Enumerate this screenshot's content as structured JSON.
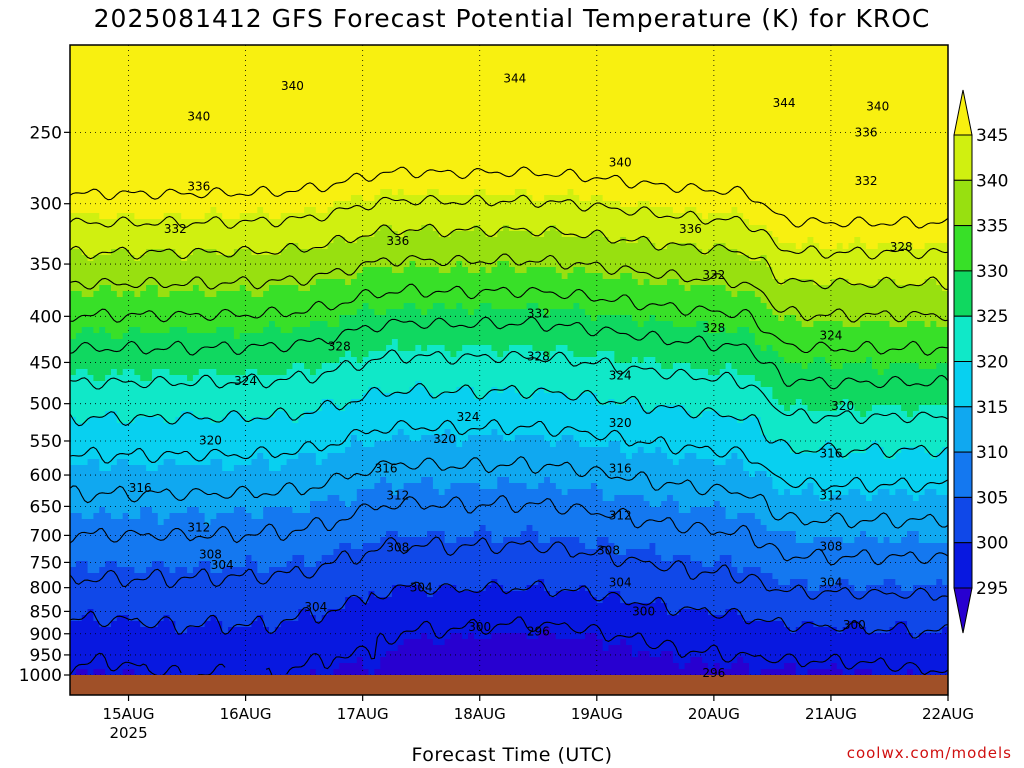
{
  "chart_data": {
    "type": "heatmap",
    "title": "2025081412 GFS Forecast Potential Temperature (K) for KROC",
    "xlabel": "Forecast Time (UTC)",
    "ylabel": "",
    "x_range": [
      "2025-08-14T12",
      "2025-08-22T00"
    ],
    "x_ticks": [
      {
        "day": 15,
        "label": "15AUG",
        "sub": "2025"
      },
      {
        "day": 16,
        "label": "16AUG",
        "sub": ""
      },
      {
        "day": 17,
        "label": "17AUG",
        "sub": ""
      },
      {
        "day": 18,
        "label": "18AUG",
        "sub": ""
      },
      {
        "day": 19,
        "label": "19AUG",
        "sub": ""
      },
      {
        "day": 20,
        "label": "20AUG",
        "sub": ""
      },
      {
        "day": 21,
        "label": "21AUG",
        "sub": ""
      },
      {
        "day": 22,
        "label": "22AUG",
        "sub": ""
      }
    ],
    "y_axis": {
      "scale": "log-pressure",
      "units": "hPa",
      "inverted": true,
      "range": [
        1000,
        200
      ]
    },
    "y_ticks": [
      250,
      300,
      350,
      400,
      450,
      500,
      550,
      600,
      650,
      700,
      750,
      800,
      850,
      900,
      950,
      1000
    ],
    "colorbar": {
      "levels": [
        295,
        300,
        305,
        310,
        315,
        320,
        325,
        330,
        335,
        340,
        345
      ],
      "labels": [
        "345",
        "340",
        "335",
        "330",
        "325",
        "320",
        "315",
        "310",
        "305",
        "300",
        "295"
      ],
      "colors": [
        "#2800d0",
        "#0818e0",
        "#1048e8",
        "#1478f0",
        "#10a8f0",
        "#08d0f0",
        "#10e8c8",
        "#10d860",
        "#38e028",
        "#98e010",
        "#d0f010",
        "#f8f010"
      ]
    },
    "grid": true,
    "ground_color": "#a05028",
    "contour_interval": 4,
    "contour_labels": [
      {
        "day": 16.4,
        "p": 222,
        "value": "340"
      },
      {
        "day": 18.3,
        "p": 218,
        "value": "344"
      },
      {
        "day": 20.6,
        "p": 232,
        "value": "344"
      },
      {
        "day": 21.4,
        "p": 234,
        "value": "340"
      },
      {
        "day": 15.6,
        "p": 240,
        "value": "340"
      },
      {
        "day": 21.3,
        "p": 250,
        "value": "336"
      },
      {
        "day": 19.2,
        "p": 270,
        "value": "340"
      },
      {
        "day": 21.3,
        "p": 283,
        "value": "332"
      },
      {
        "day": 15.6,
        "p": 287,
        "value": "336"
      },
      {
        "day": 15.4,
        "p": 320,
        "value": "332"
      },
      {
        "day": 19.8,
        "p": 320,
        "value": "336"
      },
      {
        "day": 17.3,
        "p": 330,
        "value": "336"
      },
      {
        "day": 21.6,
        "p": 335,
        "value": "328"
      },
      {
        "day": 20.0,
        "p": 360,
        "value": "332"
      },
      {
        "day": 18.5,
        "p": 397,
        "value": "332"
      },
      {
        "day": 20.0,
        "p": 412,
        "value": "328"
      },
      {
        "day": 21.0,
        "p": 420,
        "value": "324"
      },
      {
        "day": 16.8,
        "p": 432,
        "value": "328"
      },
      {
        "day": 18.5,
        "p": 443,
        "value": "328"
      },
      {
        "day": 16.0,
        "p": 472,
        "value": "324"
      },
      {
        "day": 19.2,
        "p": 465,
        "value": "324"
      },
      {
        "day": 21.1,
        "p": 503,
        "value": "320"
      },
      {
        "day": 17.9,
        "p": 517,
        "value": "324"
      },
      {
        "day": 19.2,
        "p": 525,
        "value": "320"
      },
      {
        "day": 15.7,
        "p": 549,
        "value": "320"
      },
      {
        "day": 17.7,
        "p": 547,
        "value": "320"
      },
      {
        "day": 21.0,
        "p": 568,
        "value": "316"
      },
      {
        "day": 17.2,
        "p": 590,
        "value": "316"
      },
      {
        "day": 19.2,
        "p": 590,
        "value": "316"
      },
      {
        "day": 15.1,
        "p": 620,
        "value": "316"
      },
      {
        "day": 17.3,
        "p": 632,
        "value": "312"
      },
      {
        "day": 21.0,
        "p": 632,
        "value": "312"
      },
      {
        "day": 19.2,
        "p": 665,
        "value": "312"
      },
      {
        "day": 15.6,
        "p": 686,
        "value": "312"
      },
      {
        "day": 17.3,
        "p": 722,
        "value": "308"
      },
      {
        "day": 19.1,
        "p": 728,
        "value": "308"
      },
      {
        "day": 21.0,
        "p": 720,
        "value": "308"
      },
      {
        "day": 15.7,
        "p": 735,
        "value": "308"
      },
      {
        "day": 15.8,
        "p": 755,
        "value": "304"
      },
      {
        "day": 19.2,
        "p": 790,
        "value": "304"
      },
      {
        "day": 21.0,
        "p": 790,
        "value": "304"
      },
      {
        "day": 17.5,
        "p": 800,
        "value": "304"
      },
      {
        "day": 16.6,
        "p": 840,
        "value": "304"
      },
      {
        "day": 19.4,
        "p": 850,
        "value": "300"
      },
      {
        "day": 18.0,
        "p": 885,
        "value": "300"
      },
      {
        "day": 21.2,
        "p": 880,
        "value": "300"
      },
      {
        "day": 18.5,
        "p": 895,
        "value": "296"
      },
      {
        "day": 20.0,
        "p": 995,
        "value": "296"
      }
    ]
  },
  "credit": "coolwx.com/models"
}
